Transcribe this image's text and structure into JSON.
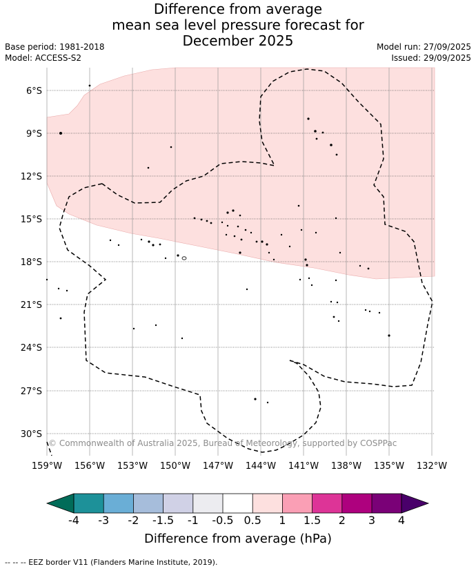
{
  "title": {
    "line1": "Difference from average",
    "line2": "mean sea level pressure forecast for",
    "line3": "December 2025"
  },
  "meta": {
    "base_period": "Base period: 1981-2018",
    "model": "Model: ACCESS-S2",
    "model_run": "Model run: 27/09/2025",
    "issued": "Issued: 29/09/2025"
  },
  "map": {
    "lat_labels": [
      "6°S",
      "9°S",
      "12°S",
      "15°S",
      "18°S",
      "21°S",
      "24°S",
      "27°S",
      "30°S"
    ],
    "lon_labels": [
      "159°W",
      "156°W",
      "153°W",
      "150°W",
      "147°W",
      "144°W",
      "141°W",
      "138°W",
      "135°W",
      "132°W"
    ],
    "copyright": "© Commonwealth of Australia 2025, Bureau of Meteorology, supported by COSPPac",
    "anomaly_region": {
      "category": "0.5 to 1 hPa",
      "color": "#fde0df"
    }
  },
  "colorbar": {
    "label": "Difference from average (hPa)",
    "ticks": [
      "-4",
      "-3",
      "-2",
      "-1.5",
      "-1",
      "-0.5",
      "0.5",
      "1",
      "1.5",
      "2",
      "3",
      "4"
    ],
    "colors": [
      "#1d9199",
      "#6aaed6",
      "#a6bddb",
      "#d0d1e6",
      "#ececf0",
      "#ffffff",
      "#fde0df",
      "#fa9fb5",
      "#dd3497",
      "#ae017e",
      "#7a0177"
    ],
    "under_color": "#016c59",
    "over_color": "#49006a"
  },
  "footer": "-- -- -- EEZ border V11 (Flanders Marine Institute, 2019)."
}
